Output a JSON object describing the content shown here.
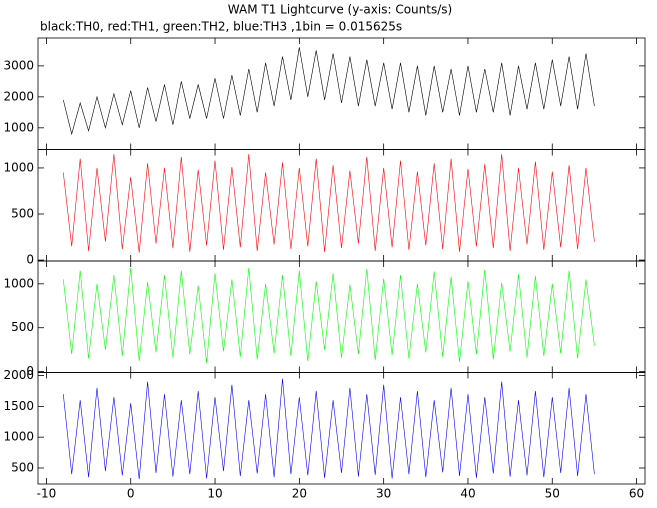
{
  "chart_data": {
    "type": "line",
    "title": "WAM T1 Lightcurve (y-axis: Counts/s)",
    "subtitle": "black:TH0, red:TH1, green:TH2, blue:TH3 ,1bin = 0.015625s",
    "xlim": [
      -11,
      61
    ],
    "xticks": [
      -10,
      0,
      10,
      20,
      30,
      40,
      50,
      60
    ],
    "x": [
      -8,
      -7,
      -6,
      -5,
      -4,
      -3,
      -2,
      -1,
      0,
      1,
      2,
      3,
      4,
      5,
      6,
      7,
      8,
      9,
      10,
      11,
      12,
      13,
      14,
      15,
      16,
      17,
      18,
      19,
      20,
      21,
      22,
      23,
      24,
      25,
      26,
      27,
      28,
      29,
      30,
      31,
      32,
      33,
      34,
      35,
      36,
      37,
      38,
      39,
      40,
      41,
      42,
      43,
      44,
      45,
      46,
      47,
      48,
      49,
      50,
      51,
      52,
      53,
      54,
      55
    ],
    "panels": [
      {
        "color": "#000000",
        "ylim": [
          300,
          3900
        ],
        "yticks": [
          1000,
          2000,
          3000
        ],
        "values": [
          1900,
          800,
          1800,
          900,
          2000,
          1000,
          2100,
          1100,
          2200,
          1000,
          2300,
          1200,
          2400,
          1100,
          2500,
          1300,
          2400,
          1300,
          2600,
          1300,
          2700,
          1400,
          2900,
          1500,
          3100,
          1700,
          3300,
          1900,
          3600,
          2000,
          3500,
          1900,
          3400,
          1800,
          3300,
          1700,
          3200,
          1700,
          3100,
          1600,
          3100,
          1500,
          3000,
          1400,
          3000,
          1500,
          2900,
          1400,
          3000,
          1500,
          2900,
          1500,
          3100,
          1400,
          3000,
          1600,
          3100,
          1600,
          3200,
          1700,
          3300,
          1600,
          3400,
          1700
        ]
      },
      {
        "color": "#ff0000",
        "ylim": [
          -10,
          1200
        ],
        "yticks": [
          0,
          500,
          1000
        ],
        "values": [
          950,
          150,
          1100,
          100,
          1000,
          200,
          1150,
          120,
          900,
          80,
          1050,
          180,
          1000,
          130,
          1120,
          90,
          980,
          160,
          1080,
          110,
          1010,
          140,
          1150,
          100,
          950,
          170,
          1060,
          120,
          1000,
          150,
          1100,
          90,
          1030,
          130,
          970,
          180,
          1120,
          100,
          1000,
          140,
          1080,
          110,
          960,
          160,
          1050,
          120,
          1100,
          90,
          990,
          150,
          1040,
          130,
          1150,
          100,
          1000,
          170,
          1070,
          110,
          960,
          140,
          1030,
          120,
          1000,
          200
        ]
      },
      {
        "color": "#00ff00",
        "ylim": [
          -10,
          1260
        ],
        "yticks": [
          0,
          500,
          1000
        ],
        "values": [
          1050,
          200,
          1150,
          150,
          1000,
          250,
          1100,
          180,
          1180,
          120,
          1020,
          220,
          1100,
          160,
          1150,
          200,
          980,
          100,
          1120,
          230,
          1050,
          170,
          1180,
          140,
          1000,
          210,
          1100,
          180,
          1150,
          120,
          1030,
          250,
          1120,
          160,
          990,
          200,
          1170,
          130,
          1060,
          190,
          1100,
          150,
          1000,
          220,
          1140,
          170,
          1080,
          110,
          1030,
          200,
          1160,
          140,
          1010,
          230,
          1110,
          160,
          1090,
          180,
          1000,
          210,
          1150,
          150,
          1050,
          300
        ]
      },
      {
        "color": "#0000ff",
        "ylim": [
          240,
          2050
        ],
        "yticks": [
          500,
          1000,
          1500,
          2000
        ],
        "values": [
          1700,
          400,
          1600,
          350,
          1800,
          450,
          1650,
          380,
          1550,
          320,
          1900,
          420,
          1700,
          360,
          1600,
          400,
          1750,
          330,
          1650,
          450,
          1850,
          370,
          1600,
          410,
          1700,
          350,
          1950,
          400,
          1650,
          380,
          1750,
          340,
          1600,
          420,
          1800,
          360,
          1700,
          390,
          1850,
          330,
          1650,
          400,
          1750,
          350,
          1600,
          430,
          1800,
          370,
          1700,
          340,
          1650,
          410,
          1900,
          360,
          1600,
          380,
          1750,
          350,
          1650,
          420,
          1800,
          370,
          1700,
          400
        ]
      }
    ]
  }
}
